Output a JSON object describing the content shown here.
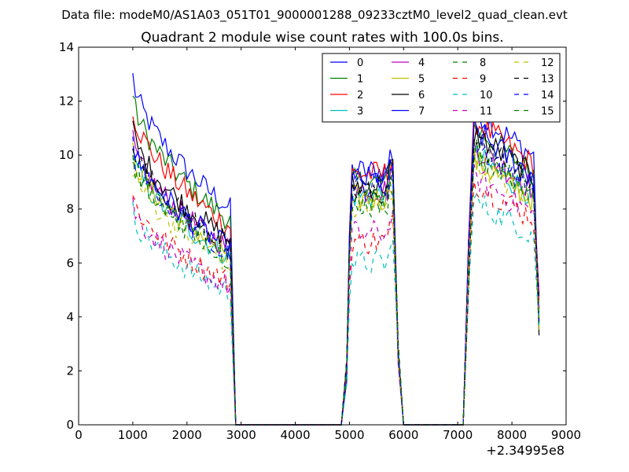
{
  "colors": {
    "m0": "#0000ff",
    "m1": "#008000",
    "m2": "#ff0000",
    "m3": "#00bfbf",
    "m4": "#bf00bf",
    "m5": "#bfbf00",
    "m6": "#000000",
    "m7": "#0000ff",
    "m8": "#008000",
    "m9": "#ff0000",
    "m10": "#00bfbf",
    "m11": "#bf00bf",
    "m12": "#bfbf00",
    "m13": "#000000",
    "m14": "#0000ff",
    "m15": "#008000"
  },
  "chart_data": {
    "type": "line",
    "suptitle": "Data file: modeM0/AS1A03_051T01_9000001288_09233cztM0_level2_quad_clean.evt",
    "title": "Quadrant 2 module wise count rates with 100.0s bins.",
    "xlabel": "",
    "ylabel": "",
    "offset_label": "+2.34995e8",
    "xlim": [
      0,
      9000
    ],
    "ylim": [
      0,
      14
    ],
    "xticks": [
      0,
      1000,
      2000,
      3000,
      4000,
      5000,
      6000,
      7000,
      8000,
      9000
    ],
    "xtick_labels": [
      "0",
      "1000",
      "2000",
      "3000",
      "4000",
      "5000",
      "6000",
      "7000",
      "8000",
      "9000"
    ],
    "yticks": [
      0,
      2,
      4,
      6,
      8,
      10,
      12,
      14
    ],
    "ytick_labels": [
      "0",
      "2",
      "4",
      "6",
      "8",
      "10",
      "12",
      "14"
    ],
    "legend_location": "top-right",
    "legend_columns": 4,
    "segments": [
      {
        "start": 1000,
        "end": 2800
      },
      {
        "start": 5000,
        "end": 5800
      },
      {
        "start": 7300,
        "end": 8400
      }
    ],
    "series": [
      {
        "name": "0",
        "color_key": "m0",
        "dash": "solid",
        "levels": [
          12.9,
          9.4,
          11.7
        ]
      },
      {
        "name": "1",
        "color_key": "m1",
        "dash": "solid",
        "levels": [
          12.2,
          9.0,
          11.0
        ]
      },
      {
        "name": "2",
        "color_key": "m2",
        "dash": "solid",
        "levels": [
          11.8,
          9.3,
          11.3
        ]
      },
      {
        "name": "3",
        "color_key": "m3",
        "dash": "solid",
        "levels": [
          10.0,
          8.5,
          10.0
        ]
      },
      {
        "name": "4",
        "color_key": "m4",
        "dash": "solid",
        "levels": [
          10.5,
          8.7,
          10.3
        ]
      },
      {
        "name": "5",
        "color_key": "m5",
        "dash": "solid",
        "levels": [
          10.2,
          8.4,
          9.8
        ]
      },
      {
        "name": "6",
        "color_key": "m6",
        "dash": "solid",
        "levels": [
          11.0,
          8.9,
          10.8
        ]
      },
      {
        "name": "7",
        "color_key": "m7",
        "dash": "solid",
        "levels": [
          10.5,
          9.1,
          10.9
        ]
      },
      {
        "name": "8",
        "color_key": "m8",
        "dash": "dashed",
        "levels": [
          10.0,
          8.2,
          10.2
        ]
      },
      {
        "name": "9",
        "color_key": "m9",
        "dash": "dashed",
        "levels": [
          8.5,
          6.8,
          9.0
        ]
      },
      {
        "name": "10",
        "color_key": "m10",
        "dash": "dashed",
        "levels": [
          7.9,
          6.0,
          8.3
        ]
      },
      {
        "name": "11",
        "color_key": "m11",
        "dash": "dashed",
        "levels": [
          8.2,
          7.1,
          9.2
        ]
      },
      {
        "name": "12",
        "color_key": "m12",
        "dash": "dashed",
        "levels": [
          9.6,
          8.0,
          9.8
        ]
      },
      {
        "name": "13",
        "color_key": "m13",
        "dash": "dashed",
        "levels": [
          10.6,
          8.6,
          10.5
        ]
      },
      {
        "name": "14",
        "color_key": "m14",
        "dash": "dashed",
        "levels": [
          10.3,
          8.8,
          10.4
        ]
      },
      {
        "name": "15",
        "color_key": "m15",
        "dash": "dashed",
        "levels": [
          9.9,
          8.3,
          10.2
        ]
      }
    ]
  }
}
